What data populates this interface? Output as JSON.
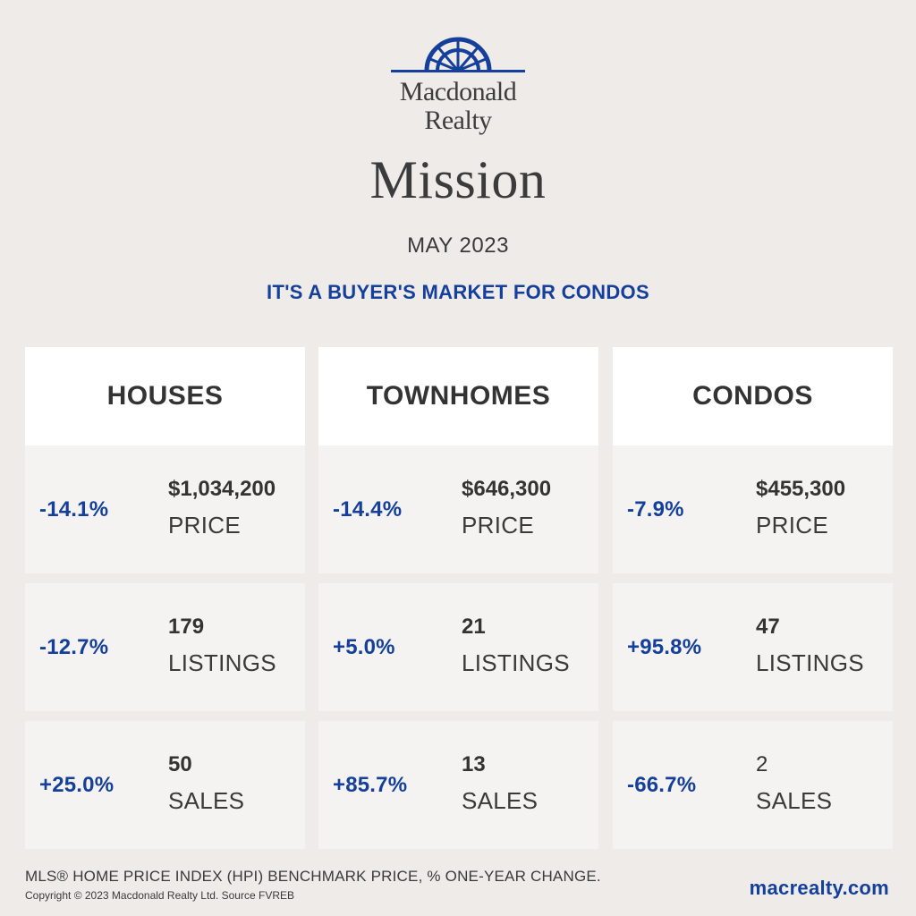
{
  "brand": {
    "name_line1": "Macdonald",
    "name_line2": "Realty",
    "logo_color": "#143f9a"
  },
  "title": "Mission",
  "period": "MAY 2023",
  "headline": "IT'S A BUYER'S MARKET FOR CONDOS",
  "accent_color": "#143f9a",
  "columns": [
    {
      "header": "HOUSES",
      "rows": [
        {
          "change": "-14.1%",
          "value": "$1,034,200",
          "metric": "PRICE"
        },
        {
          "change": "-12.7%",
          "value": "179",
          "metric": "LISTINGS"
        },
        {
          "change": "+25.0%",
          "value": "50",
          "metric": "SALES"
        }
      ]
    },
    {
      "header": "TOWNHOMES",
      "rows": [
        {
          "change": "-14.4%",
          "value": "$646,300",
          "metric": "PRICE"
        },
        {
          "change": "+5.0%",
          "value": "21",
          "metric": "LISTINGS"
        },
        {
          "change": "+85.7%",
          "value": "13",
          "metric": "SALES"
        }
      ]
    },
    {
      "header": "CONDOS",
      "rows": [
        {
          "change": "-7.9%",
          "value": "$455,300",
          "metric": "PRICE"
        },
        {
          "change": "+95.8%",
          "value": "47",
          "metric": "LISTINGS"
        },
        {
          "change": "-66.7%",
          "value": "2",
          "metric": "SALES"
        }
      ]
    }
  ],
  "footer": {
    "note": "MLS® HOME PRICE INDEX (HPI) BENCHMARK PRICE, % ONE-YEAR CHANGE.",
    "copyright": "Copyright © 2023 Macdonald Realty Ltd. Source FVREB",
    "website": "macrealty.com"
  }
}
